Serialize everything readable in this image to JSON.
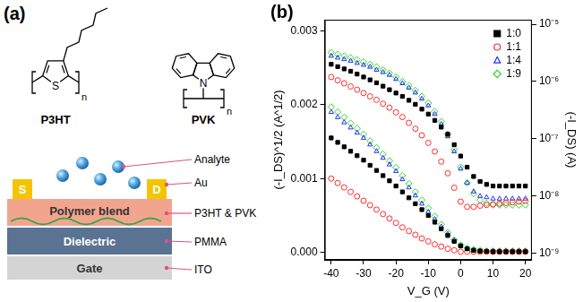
{
  "diagram": {
    "label": "(a)",
    "molecules": [
      {
        "name": "P3HT",
        "atom": "S",
        "repeat": "n"
      },
      {
        "name": "PVK",
        "atom": "N",
        "repeat": "n"
      }
    ],
    "device": {
      "electrodes": [
        "S",
        "D"
      ],
      "layers": [
        {
          "text": "Polymer blend",
          "label": "P3HT & PVK"
        },
        {
          "text": "Dielectric",
          "label": "PMMA"
        },
        {
          "text": "Gate",
          "label": "ITO"
        }
      ],
      "callouts": [
        "Analyte",
        "Au"
      ]
    }
  },
  "chart_data": {
    "type": "scatter",
    "panel_label": "(b)",
    "x_label": "V_G (V)",
    "y_label": "(-I_DS)^1/2 (A^1/2)",
    "y2_label": "(-I_DS) (A)",
    "x": [
      -40,
      -38,
      -36,
      -34,
      -32,
      -30,
      -28,
      -26,
      -24,
      -22,
      -20,
      -18,
      -16,
      -14,
      -12,
      -10,
      -8,
      -6,
      -4,
      -2,
      0,
      2,
      4,
      6,
      8,
      10,
      12,
      14,
      16,
      18,
      20
    ],
    "xlim": [
      -42,
      22
    ],
    "xticks": [
      -40,
      -30,
      -20,
      -10,
      0,
      10,
      20
    ],
    "ylim": [
      -0.0001,
      0.00315
    ],
    "yticks": [
      {
        "value": 0,
        "label": "0.000"
      },
      {
        "value": 0.001,
        "label": "0.001"
      },
      {
        "value": 0.002,
        "label": "0.002"
      },
      {
        "value": 0.003,
        "label": "0.003"
      }
    ],
    "y2lim": [
      7.7e-10,
      1.2e-05
    ],
    "y2ticks": [
      {
        "value": 1e-09,
        "label": "10⁻⁹"
      },
      {
        "value": 1e-08,
        "label": "10⁻⁸"
      },
      {
        "value": 1e-07,
        "label": "10⁻⁷"
      },
      {
        "value": 1e-06,
        "label": "10⁻⁶"
      },
      {
        "value": 1e-05,
        "label": "10⁻⁵"
      }
    ],
    "log": "y2",
    "grid": false,
    "legend": "upper right",
    "series": [
      {
        "name": "1:0",
        "color": "#000000",
        "marker": "square",
        "values": [
          0.00155,
          0.00149,
          0.00143,
          0.00137,
          0.00131,
          0.00125,
          0.00118,
          0.00111,
          0.00104,
          0.00097,
          0.0009,
          0.00082,
          0.00074,
          0.00066,
          0.00058,
          0.0005,
          0.00041,
          0.00032,
          0.00023,
          0.00015,
          9e-05,
          5e-05,
          3e-05,
          2e-05,
          1.5e-05,
          1e-05,
          1e-05,
          1e-05,
          1e-05,
          1e-05,
          1e-05
        ]
      },
      {
        "name": "1:1",
        "color": "#ff2a2a",
        "marker": "open_circle",
        "values": [
          0.001,
          0.00094,
          0.00088,
          0.00082,
          0.00076,
          0.0007,
          0.00064,
          0.00058,
          0.00052,
          0.00046,
          0.0004,
          0.00034,
          0.00029,
          0.00024,
          0.00019,
          0.00015,
          0.00011,
          8e-05,
          5e-05,
          3e-05,
          1e-05,
          1e-05,
          1e-05,
          1e-05,
          1e-05,
          1e-05,
          1e-05,
          1e-05,
          1e-05,
          1e-05,
          1e-05
        ]
      },
      {
        "name": "1:4",
        "color": "#2233ee",
        "marker": "open_triangle",
        "values": [
          0.0019,
          0.00183,
          0.00176,
          0.00169,
          0.00162,
          0.00155,
          0.00146,
          0.00137,
          0.00128,
          0.00119,
          0.0011,
          0.00099,
          0.00088,
          0.00077,
          0.00066,
          0.00055,
          0.00045,
          0.00035,
          0.00025,
          0.00016,
          9e-05,
          5e-05,
          3e-05,
          2e-05,
          2e-05,
          2e-05,
          2e-05,
          2e-05,
          2e-05,
          2e-05,
          2e-05
        ]
      },
      {
        "name": "1:9",
        "color": "#2fd32f",
        "marker": "open_diamond",
        "values": [
          0.00197,
          0.0019,
          0.00183,
          0.00175,
          0.00168,
          0.0016,
          0.00151,
          0.00142,
          0.00133,
          0.00124,
          0.00115,
          0.00104,
          0.00093,
          0.00082,
          0.00071,
          0.0006,
          0.00049,
          0.00038,
          0.00027,
          0.00017,
          0.0001,
          6e-05,
          4e-05,
          3e-05,
          2e-05,
          2e-05,
          2e-05,
          2e-05,
          2e-05,
          2e-05,
          2e-05
        ]
      },
      {
        "name": "1:0",
        "color": "#000000",
        "marker": "square",
        "axis": "y2",
        "values": [
          2e-06,
          1.82e-06,
          1.66e-06,
          1.51e-06,
          1.35e-06,
          1.2e-06,
          1.07e-06,
          9.5e-07,
          8.3e-07,
          7.2e-07,
          6.3e-07,
          5.5e-07,
          4.7e-07,
          4e-07,
          3.3e-07,
          2.7e-07,
          2.1e-07,
          1.6e-07,
          1.2e-07,
          7.9e-08,
          5e-08,
          3.2e-08,
          2.2e-08,
          1.8e-08,
          1.6e-08,
          1.5e-08,
          1.5e-08,
          1.5e-08,
          1.5e-08,
          1.5e-08,
          1.5e-08
        ]
      },
      {
        "name": "1:1",
        "color": "#ff2a2a",
        "marker": "open_circle",
        "axis": "y2",
        "values": [
          1.2e-06,
          1.05e-06,
          9.3e-07,
          8.2e-07,
          7.2e-07,
          6.3e-07,
          5.5e-07,
          4.8e-07,
          4.1e-07,
          3.5e-07,
          2.9e-07,
          2.4e-07,
          1.9e-07,
          1.5e-07,
          1.15e-07,
          8.5e-08,
          6e-08,
          4e-08,
          2.5e-08,
          1.4e-08,
          8e-09,
          6.5e-09,
          6.5e-09,
          6.8e-09,
          7e-09,
          7.2e-09,
          7.4e-09,
          7.6e-09,
          7.8e-09,
          8e-09,
          8.2e-09
        ]
      },
      {
        "name": "1:4",
        "color": "#2233ee",
        "marker": "open_triangle",
        "axis": "y2",
        "values": [
          2.8e-06,
          2.6e-06,
          2.45e-06,
          2.3e-06,
          2.1e-06,
          1.95e-06,
          1.8e-06,
          1.6e-06,
          1.45e-06,
          1.3e-06,
          1.1e-06,
          9.3e-07,
          7.8e-07,
          6.4e-07,
          5e-07,
          3.8e-07,
          2.7e-07,
          1.8e-07,
          1.1e-07,
          6e-08,
          3e-08,
          1.7e-08,
          1.2e-08,
          1e-08,
          9.5e-09,
          9e-09,
          9e-09,
          9e-09,
          9e-09,
          9e-09,
          9e-09
        ]
      },
      {
        "name": "1:9",
        "color": "#2fd32f",
        "marker": "open_diamond",
        "axis": "y2",
        "values": [
          3.2e-06,
          3e-06,
          2.8e-06,
          2.6e-06,
          2.4e-06,
          2.2e-06,
          2e-06,
          1.8e-06,
          1.6e-06,
          1.4e-06,
          1.2e-06,
          1e-06,
          8.5e-07,
          7e-07,
          5.5e-07,
          4.2e-07,
          3e-07,
          2e-07,
          1.2e-07,
          6.5e-08,
          3.2e-08,
          1.7e-08,
          1.1e-08,
          8.5e-09,
          7.5e-09,
          7e-09,
          7e-09,
          7e-09,
          7e-09,
          7e-09,
          7e-09
        ]
      }
    ]
  }
}
